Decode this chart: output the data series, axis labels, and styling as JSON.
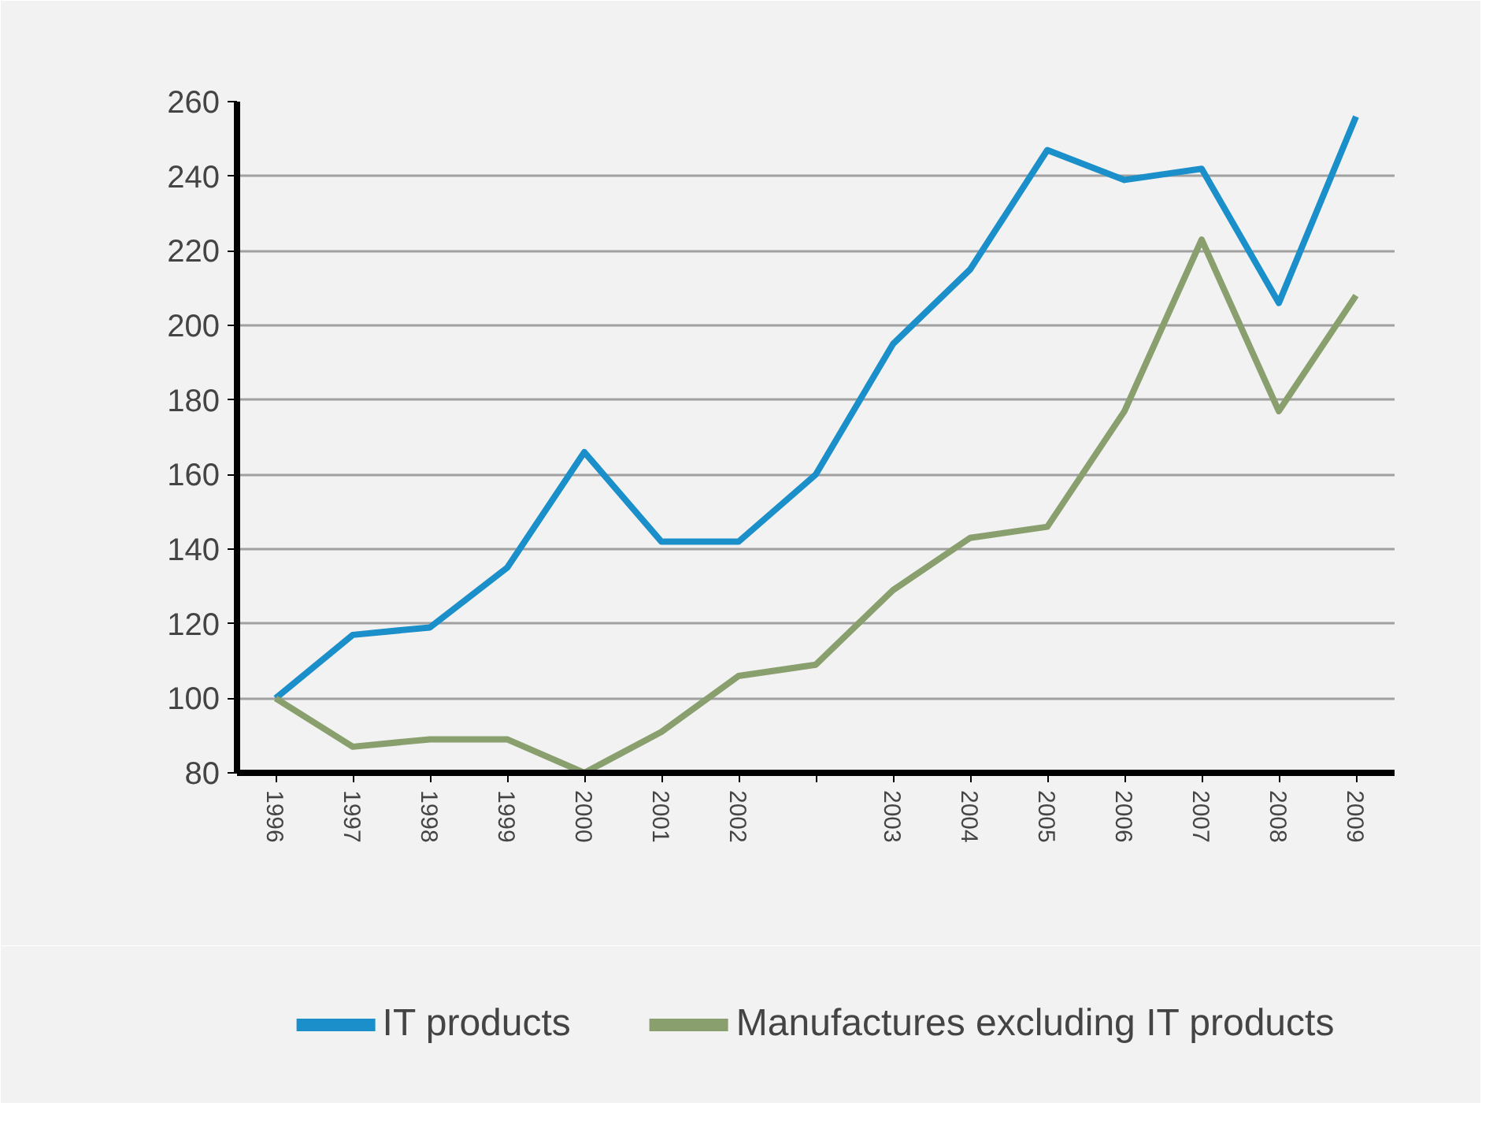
{
  "chart_data": {
    "type": "line",
    "categories": [
      "1996",
      "1997",
      "1998",
      "1999",
      "2000",
      "2001",
      "2002",
      null,
      "2003",
      "2004",
      "2005",
      "2006",
      "2007",
      "2008",
      "2009"
    ],
    "series": [
      {
        "name": "IT products",
        "color": "#1a8fc9",
        "values": [
          100,
          117,
          119,
          135,
          166,
          142,
          142,
          160,
          195,
          215,
          247,
          239,
          242,
          206,
          256
        ]
      },
      {
        "name": "Manufactures excluding IT products",
        "color": "#8a9f6e",
        "values": [
          100,
          87,
          89,
          89,
          80,
          91,
          106,
          109,
          129,
          143,
          146,
          177,
          223,
          177,
          208
        ]
      }
    ],
    "ylim": [
      80,
      260
    ],
    "yticks": [
      80,
      100,
      120,
      140,
      160,
      180,
      200,
      220,
      240,
      260
    ],
    "grid": "y",
    "legend": "bottom",
    "line_style": "solid",
    "marker": "none"
  }
}
